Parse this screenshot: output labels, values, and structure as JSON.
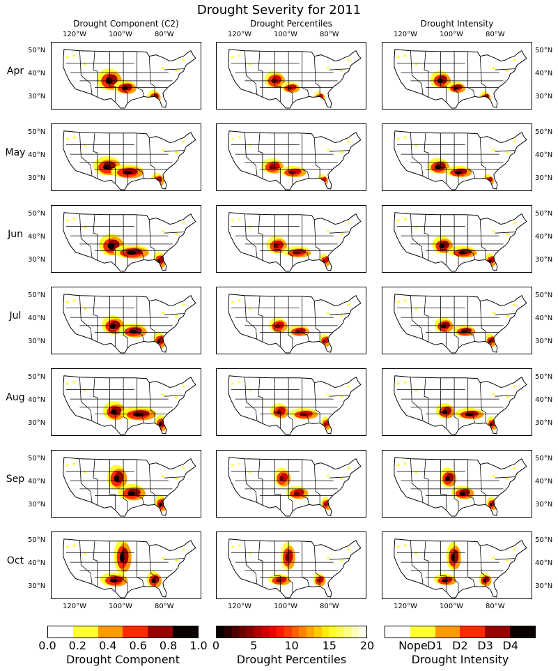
{
  "chart_data": {
    "type": "heatmap",
    "title": "Drought Severity for 2011",
    "columns": [
      "Drought Component (C2)",
      "Drought Percentiles",
      "Drought Intensity"
    ],
    "rows": [
      "Apr",
      "May",
      "Jun",
      "Jul",
      "Aug",
      "Sep",
      "Oct"
    ],
    "lon_ticks": [
      "120°W",
      "100°W",
      "80°W"
    ],
    "lat_ticks": [
      "50°N",
      "40°N",
      "30°N"
    ],
    "colorbars": [
      {
        "label": "Drought Component",
        "ticks": [
          "0.0",
          "0.2",
          "0.4",
          "0.6",
          "0.8",
          "1.0"
        ],
        "colors": [
          "#ffffff",
          "#ffff33",
          "#ff9900",
          "#ff2a00",
          "#990000",
          "#0a0000"
        ]
      },
      {
        "label": "Drought Percentiles",
        "ticks": [
          "0",
          "5",
          "10",
          "15",
          "20"
        ],
        "colors": [
          "#0b0000",
          "#2b0000",
          "#4d0000",
          "#6e0000",
          "#8f0000",
          "#b00000",
          "#d10000",
          "#f20000",
          "#ff1a00",
          "#ff3d00",
          "#ff6000",
          "#ff8300",
          "#ffa600",
          "#ffc900",
          "#ffec00",
          "#ffff22",
          "#ffff55",
          "#ffff88",
          "#ffffbb",
          "#ffffee"
        ]
      },
      {
        "label": "Drought Intensity",
        "ticks": [
          "Nope",
          "D1",
          "D2",
          "D3",
          "D4"
        ],
        "colors": [
          "#ffffff",
          "#ffff33",
          "#ff9900",
          "#ff2a00",
          "#990000",
          "#0a0000"
        ]
      }
    ]
  }
}
